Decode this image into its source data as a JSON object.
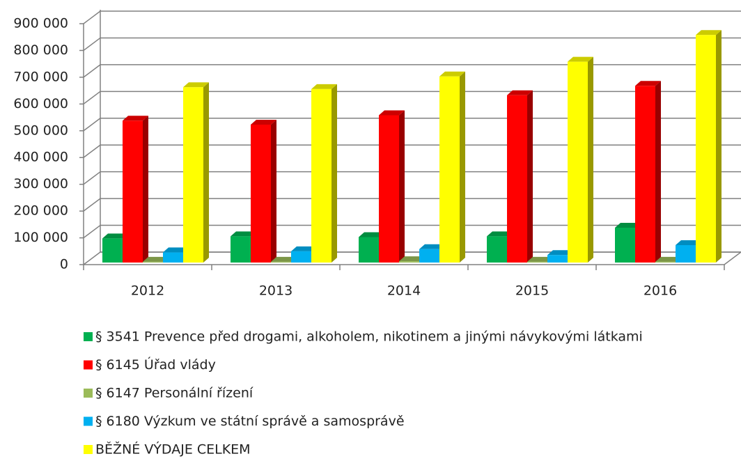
{
  "chart_data": {
    "type": "bar3d",
    "categories": [
      "2012",
      "2013",
      "2014",
      "2015",
      "2016"
    ],
    "series": [
      {
        "name": "§ 3541 Prevence před drogami, alkoholem, nikotinem a jinými návykovými látkami",
        "color": "#00b050",
        "values": [
          90000,
          98000,
          95000,
          98000,
          130000
        ]
      },
      {
        "name": "§ 6145 Úřad vlády",
        "color": "#ff0000",
        "values": [
          530000,
          515000,
          550000,
          625000,
          660000
        ]
      },
      {
        "name": "§ 6147 Personální řízení",
        "color": "#9bbb59",
        "values": [
          3000,
          3000,
          5000,
          3000,
          3000
        ]
      },
      {
        "name": "§ 6180 Výzkum ve státní správě a samosprávě",
        "color": "#00b0f0",
        "values": [
          38000,
          42000,
          50000,
          28000,
          65000
        ]
      },
      {
        "name": "BĚŽNÉ VÝDAJE CELKEM",
        "color": "#ffff00",
        "values": [
          655000,
          648000,
          695000,
          750000,
          850000
        ]
      }
    ],
    "ylim": [
      0,
      900000
    ],
    "yticks": [
      0,
      {
        "value": 100000,
        "label": "100 000"
      },
      {
        "value": 200000,
        "label": "200 000"
      },
      {
        "value": 300000,
        "label": "300 000"
      },
      {
        "value": 400000,
        "label": "400 000"
      },
      {
        "value": 500000,
        "label": "500 000"
      },
      {
        "value": 600000,
        "label": "600 000"
      },
      {
        "value": 700000,
        "label": "700 000"
      },
      {
        "value": 800000,
        "label": "800 000"
      },
      {
        "value": 900000,
        "label": "900 000"
      }
    ],
    "grid": true,
    "legend": "bottom"
  }
}
